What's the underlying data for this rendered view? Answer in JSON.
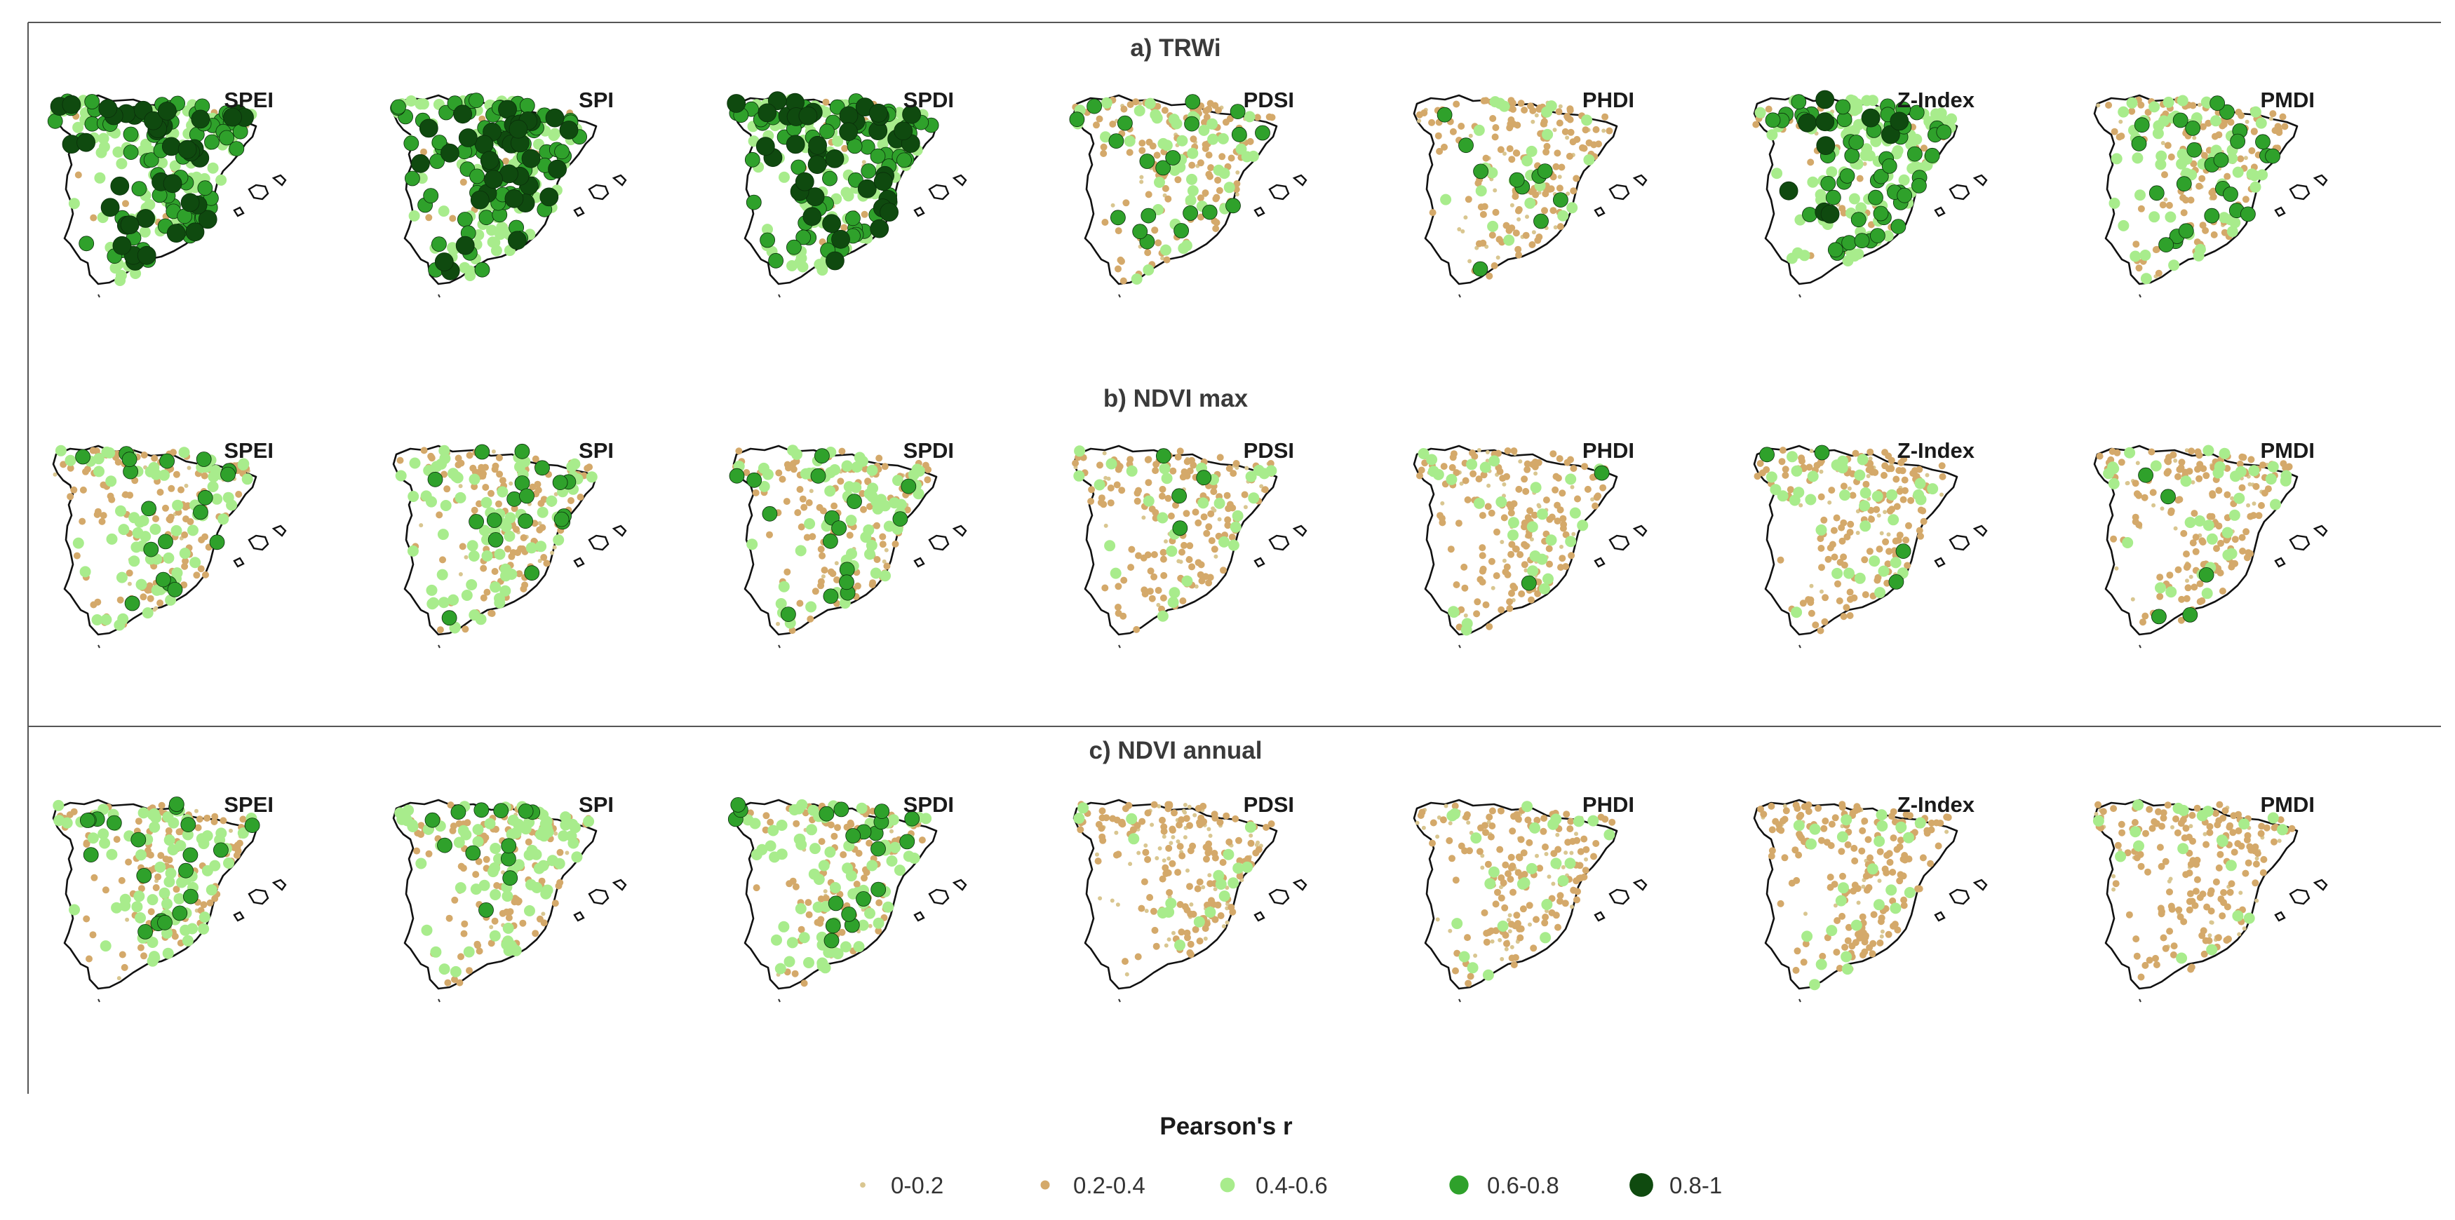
{
  "chart_data": {
    "type": "scatter",
    "title": "",
    "description_units": "Pearson's r between each drought index and tree growth / NDVI at sites across Spain",
    "panels": [
      {
        "id": "a",
        "title": "a) TRWi",
        "maps": [
          {
            "index": "SPEI",
            "class_counts": [
              5,
              20,
              110,
              70,
              40
            ]
          },
          {
            "index": "SPI",
            "class_counts": [
              5,
              20,
              110,
              75,
              35
            ]
          },
          {
            "index": "SPDI",
            "class_counts": [
              5,
              20,
              110,
              70,
              40
            ]
          },
          {
            "index": "PDSI",
            "class_counts": [
              30,
              130,
              45,
              20,
              0
            ]
          },
          {
            "index": "PHDI",
            "class_counts": [
              40,
              140,
              25,
              10,
              0
            ]
          },
          {
            "index": "Z-Index",
            "class_counts": [
              10,
              40,
              120,
              55,
              10
            ]
          },
          {
            "index": "PMDI",
            "class_counts": [
              25,
              120,
              60,
              25,
              0
            ]
          }
        ]
      },
      {
        "id": "b",
        "title": "b) NDVI max",
        "maps": [
          {
            "index": "SPEI",
            "class_counts": [
              20,
              130,
              70,
              18,
              0
            ]
          },
          {
            "index": "SPI",
            "class_counts": [
              20,
              130,
              70,
              18,
              0
            ]
          },
          {
            "index": "SPDI",
            "class_counts": [
              20,
              130,
              70,
              16,
              0
            ]
          },
          {
            "index": "PDSI",
            "class_counts": [
              40,
              150,
              30,
              4,
              0
            ]
          },
          {
            "index": "PHDI",
            "class_counts": [
              50,
              150,
              30,
              2,
              0
            ]
          },
          {
            "index": "Z-Index",
            "class_counts": [
              30,
              160,
              35,
              4,
              0
            ]
          },
          {
            "index": "PMDI",
            "class_counts": [
              40,
              150,
              35,
              5,
              0
            ]
          }
        ]
      },
      {
        "id": "c",
        "title": "c) NDVI annual",
        "maps": [
          {
            "index": "SPEI",
            "class_counts": [
              15,
              120,
              80,
              20,
              0
            ]
          },
          {
            "index": "SPI",
            "class_counts": [
              15,
              120,
              85,
              12,
              0
            ]
          },
          {
            "index": "SPDI",
            "class_counts": [
              15,
              120,
              80,
              20,
              0
            ]
          },
          {
            "index": "PDSI",
            "class_counts": [
              70,
              140,
              18,
              0,
              0
            ]
          },
          {
            "index": "PHDI",
            "class_counts": [
              60,
              140,
              25,
              0,
              0
            ]
          },
          {
            "index": "Z-Index",
            "class_counts": [
              20,
              180,
              25,
              0,
              0
            ]
          },
          {
            "index": "PMDI",
            "class_counts": [
              40,
              160,
              20,
              0,
              0
            ]
          }
        ]
      }
    ],
    "legend": {
      "title": "Pearson's r",
      "placement": "bottom-center",
      "classes": [
        {
          "label": "0-0.2",
          "color": "#d9c690",
          "level": 1
        },
        {
          "label": "0.2-0.4",
          "color": "#d4a96a",
          "level": 2
        },
        {
          "label": "0.4-0.6",
          "color": "#a8ec8c",
          "level": 3
        },
        {
          "label": "0.6-0.8",
          "color": "#2fa12b",
          "level": 4
        },
        {
          "label": "0.8-1",
          "color": "#0f4a0f",
          "level": 5
        }
      ]
    }
  }
}
